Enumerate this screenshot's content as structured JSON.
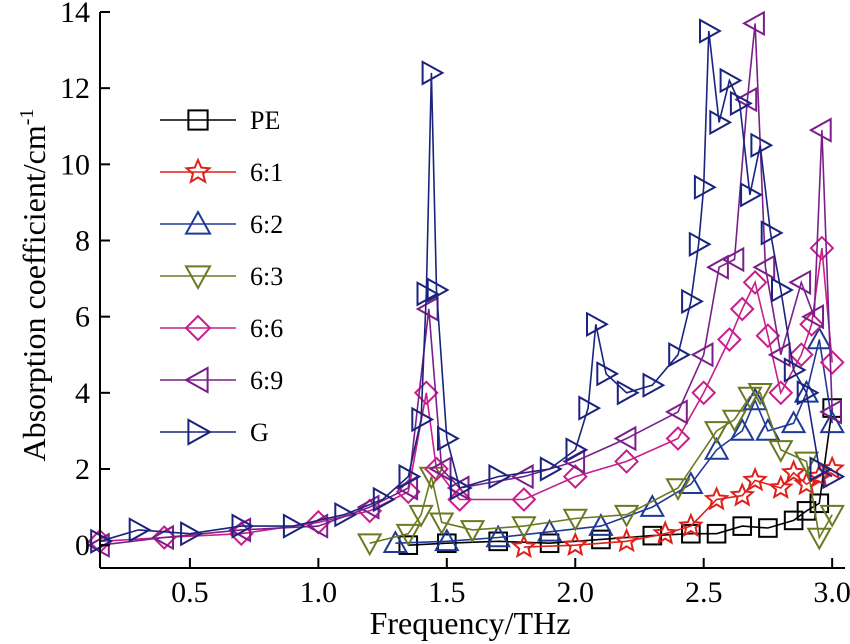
{
  "chart_data": {
    "type": "line",
    "title": "",
    "xlabel": "Frequency/THz",
    "ylabel": "Absorption coefficient/cm",
    "ylabel_superscript": "-1",
    "xlim": [
      0.15,
      3.05
    ],
    "ylim": [
      -0.6,
      14
    ],
    "x_ticks": [
      "0.5",
      "1.0",
      "1.5",
      "2.0",
      "2.5",
      "3.0"
    ],
    "y_ticks": [
      "0",
      "2",
      "4",
      "6",
      "8",
      "10",
      "12",
      "14"
    ],
    "grid": false,
    "legend_position": "upper-left",
    "series": [
      {
        "name": "PE",
        "color": "#000000",
        "marker": "square",
        "points": [
          [
            1.35,
            0.0
          ],
          [
            1.5,
            0.05
          ],
          [
            1.7,
            0.1
          ],
          [
            1.9,
            0.05
          ],
          [
            2.1,
            0.15
          ],
          [
            2.3,
            0.25
          ],
          [
            2.45,
            0.3
          ],
          [
            2.55,
            0.3
          ],
          [
            2.65,
            0.5
          ],
          [
            2.75,
            0.45
          ],
          [
            2.85,
            0.65
          ],
          [
            2.9,
            0.9
          ],
          [
            2.95,
            1.1
          ],
          [
            3.0,
            3.6
          ]
        ]
      },
      {
        "name": "6:1",
        "color": "#e0201a",
        "marker": "star",
        "points": [
          [
            1.8,
            -0.05
          ],
          [
            2.0,
            0.0
          ],
          [
            2.2,
            0.1
          ],
          [
            2.35,
            0.3
          ],
          [
            2.45,
            0.5
          ],
          [
            2.55,
            1.2
          ],
          [
            2.65,
            1.3
          ],
          [
            2.7,
            1.7
          ],
          [
            2.8,
            1.5
          ],
          [
            2.85,
            1.9
          ],
          [
            2.9,
            1.6
          ],
          [
            2.95,
            1.8
          ],
          [
            3.0,
            2.0
          ]
        ]
      },
      {
        "name": "6:2",
        "color": "#1f3a96",
        "marker": "triangle-up",
        "points": [
          [
            1.3,
            0.05
          ],
          [
            1.5,
            0.1
          ],
          [
            1.7,
            0.2
          ],
          [
            1.9,
            0.35
          ],
          [
            2.1,
            0.5
          ],
          [
            2.3,
            1.0
          ],
          [
            2.45,
            1.6
          ],
          [
            2.55,
            2.5
          ],
          [
            2.65,
            3.0
          ],
          [
            2.7,
            3.8
          ],
          [
            2.75,
            3.0
          ],
          [
            2.85,
            3.2
          ],
          [
            2.9,
            4.0
          ],
          [
            2.95,
            5.4
          ],
          [
            3.0,
            3.2
          ]
        ]
      },
      {
        "name": "6:3",
        "color": "#6b7a22",
        "marker": "triangle-down",
        "points": [
          [
            1.2,
            0.05
          ],
          [
            1.35,
            0.3
          ],
          [
            1.4,
            0.8
          ],
          [
            1.44,
            1.8
          ],
          [
            1.48,
            0.6
          ],
          [
            1.6,
            0.4
          ],
          [
            1.8,
            0.5
          ],
          [
            2.0,
            0.7
          ],
          [
            2.2,
            0.8
          ],
          [
            2.4,
            1.5
          ],
          [
            2.55,
            3.0
          ],
          [
            2.62,
            3.3
          ],
          [
            2.68,
            3.9
          ],
          [
            2.72,
            4.0
          ],
          [
            2.8,
            2.5
          ],
          [
            2.9,
            2.2
          ],
          [
            2.95,
            0.2
          ],
          [
            3.0,
            0.8
          ]
        ]
      },
      {
        "name": "6:6",
        "color": "#c81e8c",
        "marker": "diamond",
        "points": [
          [
            0.15,
            0.1
          ],
          [
            0.4,
            0.2
          ],
          [
            0.7,
            0.3
          ],
          [
            1.0,
            0.6
          ],
          [
            1.2,
            0.9
          ],
          [
            1.35,
            1.4
          ],
          [
            1.42,
            4.0
          ],
          [
            1.46,
            2.0
          ],
          [
            1.55,
            1.2
          ],
          [
            1.8,
            1.2
          ],
          [
            2.0,
            1.8
          ],
          [
            2.2,
            2.2
          ],
          [
            2.4,
            2.8
          ],
          [
            2.5,
            4.0
          ],
          [
            2.6,
            5.4
          ],
          [
            2.65,
            6.2
          ],
          [
            2.7,
            6.9
          ],
          [
            2.75,
            5.5
          ],
          [
            2.8,
            4.0
          ],
          [
            2.88,
            5.0
          ],
          [
            2.92,
            5.8
          ],
          [
            2.96,
            7.8
          ],
          [
            3.0,
            4.8
          ]
        ]
      },
      {
        "name": "6:9",
        "color": "#7a1f8a",
        "marker": "triangle-left",
        "points": [
          [
            0.15,
            0.0
          ],
          [
            0.4,
            0.2
          ],
          [
            0.7,
            0.4
          ],
          [
            1.0,
            0.5
          ],
          [
            1.2,
            1.0
          ],
          [
            1.35,
            1.5
          ],
          [
            1.43,
            6.2
          ],
          [
            1.48,
            2.0
          ],
          [
            1.55,
            1.5
          ],
          [
            1.8,
            1.8
          ],
          [
            2.0,
            2.2
          ],
          [
            2.2,
            2.8
          ],
          [
            2.4,
            3.5
          ],
          [
            2.5,
            5.0
          ],
          [
            2.56,
            7.3
          ],
          [
            2.62,
            7.5
          ],
          [
            2.67,
            11.7
          ],
          [
            2.7,
            13.7
          ],
          [
            2.74,
            7.3
          ],
          [
            2.8,
            5.0
          ],
          [
            2.88,
            6.9
          ],
          [
            2.93,
            6.0
          ],
          [
            2.96,
            10.9
          ],
          [
            3.0,
            3.5
          ]
        ]
      },
      {
        "name": "G",
        "color": "#1a237e",
        "marker": "triangle-right",
        "points": [
          [
            0.15,
            0.1
          ],
          [
            0.3,
            0.4
          ],
          [
            0.5,
            0.3
          ],
          [
            0.7,
            0.5
          ],
          [
            0.9,
            0.5
          ],
          [
            1.1,
            0.8
          ],
          [
            1.25,
            1.2
          ],
          [
            1.35,
            1.8
          ],
          [
            1.4,
            3.3
          ],
          [
            1.42,
            6.6
          ],
          [
            1.44,
            12.4
          ],
          [
            1.46,
            6.7
          ],
          [
            1.5,
            2.8
          ],
          [
            1.55,
            1.5
          ],
          [
            1.7,
            1.8
          ],
          [
            1.9,
            2.0
          ],
          [
            2.0,
            2.5
          ],
          [
            2.05,
            3.6
          ],
          [
            2.08,
            5.8
          ],
          [
            2.12,
            4.5
          ],
          [
            2.2,
            4.0
          ],
          [
            2.3,
            4.2
          ],
          [
            2.4,
            5.0
          ],
          [
            2.45,
            6.4
          ],
          [
            2.48,
            7.9
          ],
          [
            2.5,
            9.4
          ],
          [
            2.52,
            13.5
          ],
          [
            2.56,
            11.1
          ],
          [
            2.6,
            12.2
          ],
          [
            2.64,
            11.6
          ],
          [
            2.68,
            9.2
          ],
          [
            2.72,
            10.5
          ],
          [
            2.76,
            8.2
          ],
          [
            2.8,
            6.7
          ],
          [
            2.85,
            4.6
          ],
          [
            2.9,
            4.0
          ],
          [
            2.95,
            2.0
          ],
          [
            3.0,
            1.8
          ]
        ]
      }
    ]
  }
}
